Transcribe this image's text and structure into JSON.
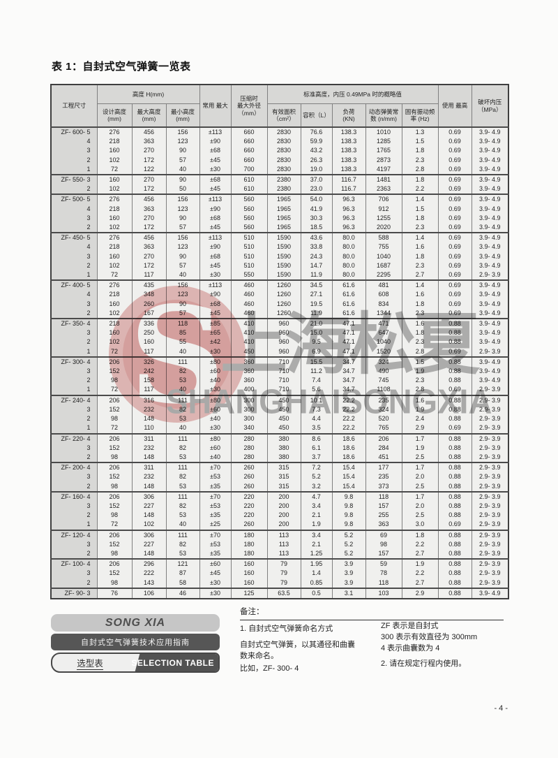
{
  "page": {
    "title": "表 1：自封式空气弹簧一览表",
    "page_number": "- 4 -"
  },
  "colors": {
    "table_header_bg": "#d8d8d6",
    "table_cell_bg": "#f0f0ee",
    "table_border_dark": "#4a4a4a",
    "brand_box_light": "#c6c6c6",
    "brand_box_dark": "#565656",
    "watermark_pink": "#eac0bf",
    "watermark_gray": "#b5b5b5"
  },
  "table": {
    "header": {
      "project": "工程尺寸",
      "height_group": "高度 H(mm)",
      "design_h": "设计高度\n(mm)",
      "max_h": "最大高度\n(mm)",
      "min_h": "最小高度\n(mm)",
      "stroke": "常用 最大",
      "od": "压缩时\n最大外径\n（mm）",
      "std_group": "标准高度，内压 0.49MPa 时的概略值",
      "area": "有效面积\n（cm²）",
      "volume": "容积（L）",
      "load": "负荷\n(KN)",
      "rate": "动态弹簧常\n数 (n/mm)",
      "freq": "固有振动频\n率 (Hz)",
      "max_use": "使用 最高",
      "burst": "破坏内压\n（MPa）"
    },
    "groups": [
      {
        "model": "ZF- 600- 5",
        "rows": [
          [
            "ZF- 600- 5",
            "276",
            "456",
            "156",
            "±113",
            "660",
            "2830",
            "76.6",
            "138.3",
            "1010",
            "1.3",
            "0.69",
            "3.9- 4.9"
          ],
          [
            "4",
            "218",
            "363",
            "123",
            "±90",
            "660",
            "2830",
            "59.9",
            "138.3",
            "1285",
            "1.5",
            "0.69",
            "3.9- 4.9"
          ],
          [
            "3",
            "160",
            "270",
            "90",
            "±68",
            "660",
            "2830",
            "43.2",
            "138.3",
            "1765",
            "1.8",
            "0.69",
            "3.9- 4.9"
          ],
          [
            "2",
            "102",
            "172",
            "57",
            "±45",
            "660",
            "2830",
            "26.3",
            "138.3",
            "2873",
            "2.3",
            "0.69",
            "3.9- 4.9"
          ],
          [
            "1",
            "72",
            "122",
            "40",
            "±30",
            "700",
            "2830",
            "19.0",
            "138.3",
            "4197",
            "2.8",
            "0.69",
            "3.9- 4.9"
          ]
        ]
      },
      {
        "model": "ZF- 550- 3",
        "rows": [
          [
            "ZF- 550- 3",
            "160",
            "270",
            "90",
            "±68",
            "610",
            "2380",
            "37.0",
            "116.7",
            "1481",
            "1.8",
            "0.69",
            "3.9- 4.9"
          ],
          [
            "2",
            "102",
            "172",
            "50",
            "±45",
            "610",
            "2380",
            "23.0",
            "116.7",
            "2363",
            "2.2",
            "0.69",
            "3.9- 4.9"
          ]
        ]
      },
      {
        "model": "ZF- 500- 5",
        "rows": [
          [
            "ZF- 500- 5",
            "276",
            "456",
            "156",
            "±113",
            "560",
            "1965",
            "54.0",
            "96.3",
            "706",
            "1.4",
            "0.69",
            "3.9- 4.9"
          ],
          [
            "4",
            "218",
            "363",
            "123",
            "±90",
            "560",
            "1965",
            "41.9",
            "96.3",
            "912",
            "1.5",
            "0.69",
            "3.9- 4.9"
          ],
          [
            "3",
            "160",
            "270",
            "90",
            "±68",
            "560",
            "1965",
            "30.3",
            "96.3",
            "1255",
            "1.8",
            "0.69",
            "3.9- 4.9"
          ],
          [
            "2",
            "102",
            "172",
            "57",
            "±45",
            "560",
            "1965",
            "18.5",
            "96.3",
            "2020",
            "2.3",
            "0.69",
            "3.9- 4.9"
          ]
        ]
      },
      {
        "model": "ZF- 450- 5",
        "rows": [
          [
            "ZF- 450- 5",
            "276",
            "456",
            "156",
            "±113",
            "510",
            "1590",
            "43.6",
            "80.0",
            "588",
            "1.4",
            "0.69",
            "3.9- 4.9"
          ],
          [
            "4",
            "218",
            "363",
            "123",
            "±90",
            "510",
            "1590",
            "33.8",
            "80.0",
            "755",
            "1.6",
            "0.69",
            "3.9- 4.9"
          ],
          [
            "3",
            "160",
            "270",
            "90",
            "±68",
            "510",
            "1590",
            "24.3",
            "80.0",
            "1040",
            "1.8",
            "0.69",
            "3.9- 4.9"
          ],
          [
            "2",
            "102",
            "172",
            "57",
            "±45",
            "510",
            "1590",
            "14.7",
            "80.0",
            "1687",
            "2.3",
            "0.69",
            "3.9- 4.9"
          ],
          [
            "1",
            "72",
            "117",
            "40",
            "±30",
            "550",
            "1590",
            "11.9",
            "80.0",
            "2295",
            "2.7",
            "0.69",
            "2.9- 3.9"
          ]
        ]
      },
      {
        "model": "ZF- 400- 5",
        "rows": [
          [
            "ZF- 400- 5",
            "276",
            "435",
            "156",
            "±113",
            "460",
            "1260",
            "34.5",
            "61.6",
            "481",
            "1.4",
            "0.69",
            "3.9- 4.9"
          ],
          [
            "4",
            "218",
            "348",
            "123",
            "±90",
            "460",
            "1260",
            "27.1",
            "61.6",
            "608",
            "1.6",
            "0.69",
            "3.9- 4.9"
          ],
          [
            "3",
            "160",
            "260",
            "90",
            "±68",
            "460",
            "1260",
            "19.5",
            "61.6",
            "834",
            "1.8",
            "0.69",
            "3.9- 4.9"
          ],
          [
            "2",
            "102",
            "167",
            "57",
            "±45",
            "460",
            "1260",
            "11.9",
            "61.6",
            "1344",
            "2.3",
            "0.69",
            "3.9- 4.9"
          ]
        ]
      },
      {
        "model": "ZF- 350- 4",
        "rows": [
          [
            "ZF- 350- 4",
            "218",
            "336",
            "118",
            "±85",
            "410",
            "960",
            "21.0",
            "47.1",
            "471",
            "1.6",
            "0.88",
            "3.9- 4.9"
          ],
          [
            "3",
            "160",
            "250",
            "85",
            "±65",
            "410",
            "960",
            "15.0",
            "47.1",
            "647",
            "1.8",
            "0.88",
            "3.9- 4.9"
          ],
          [
            "2",
            "102",
            "160",
            "55",
            "±42",
            "410",
            "960",
            "9.5",
            "47.1",
            "1040",
            "2.3",
            "0.88",
            "3.9- 4.9"
          ],
          [
            "1",
            "72",
            "117",
            "40",
            "±30",
            "450",
            "960",
            "6.9",
            "47.1",
            "1520",
            "2.8",
            "0.69",
            "2.9- 3.9"
          ]
        ]
      },
      {
        "model": "ZF- 300- 4",
        "rows": [
          [
            "ZF- 300- 4",
            "206",
            "326",
            "111",
            "±80",
            "360",
            "710",
            "15.5",
            "34.7",
            "324",
            "1.5",
            "0.88",
            "3.9- 4.9"
          ],
          [
            "3",
            "152",
            "242",
            "82",
            "±60",
            "360",
            "710",
            "11.2",
            "34.7",
            "490",
            "1.9",
            "0.88",
            "3.9- 4.9"
          ],
          [
            "2",
            "98",
            "158",
            "53",
            "±40",
            "360",
            "710",
            "7.4",
            "34.7",
            "745",
            "2.3",
            "0.88",
            "3.9- 4.9"
          ],
          [
            "1",
            "72",
            "117",
            "40",
            "±30",
            "400",
            "710",
            "5.6",
            "34.7",
            "1108",
            "2.8",
            "0.69",
            "2.9- 3.9"
          ]
        ]
      },
      {
        "model": "ZF- 240- 4",
        "rows": [
          [
            "ZF- 240- 4",
            "206",
            "316",
            "111",
            "±80",
            "300",
            "450",
            "10.1",
            "22.2",
            "235",
            "1.6",
            "0.88",
            "2.9- 3.9"
          ],
          [
            "3",
            "152",
            "232",
            "82",
            "±60",
            "300",
            "450",
            "7.3",
            "22.2",
            "324",
            "1.9",
            "0.88",
            "2.9- 3.9"
          ],
          [
            "2",
            "98",
            "148",
            "53",
            "±40",
            "300",
            "450",
            "4.4",
            "22.2",
            "520",
            "2.4",
            "0.88",
            "2.9- 3.9"
          ],
          [
            "1",
            "72",
            "110",
            "40",
            "±30",
            "340",
            "450",
            "3.5",
            "22.2",
            "765",
            "2.9",
            "0.69",
            "2.9- 3.9"
          ]
        ]
      },
      {
        "model": "ZF- 220- 4",
        "rows": [
          [
            "ZF- 220- 4",
            "206",
            "311",
            "111",
            "±80",
            "280",
            "380",
            "8.6",
            "18.6",
            "206",
            "1.7",
            "0.88",
            "2.9- 3.9"
          ],
          [
            "3",
            "152",
            "232",
            "82",
            "±60",
            "280",
            "380",
            "6.1",
            "18.6",
            "284",
            "1.9",
            "0.88",
            "2.9- 3.9"
          ],
          [
            "2",
            "98",
            "148",
            "53",
            "±40",
            "280",
            "380",
            "3.7",
            "18.6",
            "451",
            "2.5",
            "0.88",
            "2.9- 3.9"
          ]
        ]
      },
      {
        "model": "ZF- 200- 4",
        "rows": [
          [
            "ZF- 200- 4",
            "206",
            "311",
            "111",
            "±70",
            "260",
            "315",
            "7.2",
            "15.4",
            "177",
            "1.7",
            "0.88",
            "2.9- 3.9"
          ],
          [
            "3",
            "152",
            "232",
            "82",
            "±53",
            "260",
            "315",
            "5.2",
            "15.4",
            "235",
            "2.0",
            "0.88",
            "2.9- 3.9"
          ],
          [
            "2",
            "98",
            "148",
            "53",
            "±35",
            "260",
            "315",
            "3.2",
            "15.4",
            "373",
            "2.5",
            "0.88",
            "2.9- 3.9"
          ]
        ]
      },
      {
        "model": "ZF- 160- 4",
        "rows": [
          [
            "ZF- 160- 4",
            "206",
            "306",
            "111",
            "±70",
            "220",
            "200",
            "4.7",
            "9.8",
            "118",
            "1.7",
            "0.88",
            "2.9- 3.9"
          ],
          [
            "3",
            "152",
            "227",
            "82",
            "±53",
            "220",
            "200",
            "3.4",
            "9.8",
            "157",
            "2.0",
            "0.88",
            "2.9- 3.9"
          ],
          [
            "2",
            "98",
            "148",
            "53",
            "±35",
            "220",
            "200",
            "2.1",
            "9.8",
            "255",
            "2.5",
            "0.88",
            "2.9- 3.9"
          ],
          [
            "1",
            "72",
            "102",
            "40",
            "±25",
            "260",
            "200",
            "1.9",
            "9.8",
            "363",
            "3.0",
            "0.69",
            "2.9- 3.9"
          ]
        ]
      },
      {
        "model": "ZF- 120- 4",
        "rows": [
          [
            "ZF- 120- 4",
            "206",
            "306",
            "111",
            "±70",
            "180",
            "113",
            "3.4",
            "5.2",
            "69",
            "1.8",
            "0.88",
            "2.9- 3.9"
          ],
          [
            "3",
            "152",
            "227",
            "82",
            "±53",
            "180",
            "113",
            "2.1",
            "5.2",
            "98",
            "2.2",
            "0.88",
            "2.9- 3.9"
          ],
          [
            "2",
            "98",
            "148",
            "53",
            "±35",
            "180",
            "113",
            "1.25",
            "5.2",
            "157",
            "2.7",
            "0.88",
            "2.9- 3.9"
          ]
        ]
      },
      {
        "model": "ZF- 100- 4",
        "rows": [
          [
            "ZF- 100- 4",
            "206",
            "296",
            "121",
            "±60",
            "160",
            "79",
            "1.95",
            "3.9",
            "59",
            "1.9",
            "0.88",
            "2.9- 3.9"
          ],
          [
            "3",
            "152",
            "222",
            "87",
            "±45",
            "160",
            "79",
            "1.4",
            "3.9",
            "78",
            "2.2",
            "0.88",
            "2.9- 3.9"
          ],
          [
            "2",
            "98",
            "143",
            "58",
            "±30",
            "160",
            "79",
            "0.85",
            "3.9",
            "118",
            "2.7",
            "0.88",
            "2.9- 3.9"
          ]
        ]
      },
      {
        "model": "ZF- 90- 3",
        "rows": [
          [
            "ZF- 90- 3",
            "76",
            "106",
            "46",
            "±30",
            "125",
            "63.5",
            "0.5",
            "3.1",
            "103",
            "2.9",
            "0.88",
            "3.9- 4.9"
          ]
        ]
      }
    ]
  },
  "watermark": {
    "cn": "上海松夏",
    "en": "SHANGHAISONGXIA",
    "logo_letter": "S"
  },
  "branding": {
    "logo_text": "SONG XIA",
    "guide_text": "自封式空气弹簧技术应用指南",
    "tab_cn": "选型表",
    "tab_en": "SELECTION TABLE"
  },
  "notes": {
    "title": "备注：",
    "left": [
      "1. 自封式空气弹簧命名方式",
      "自封式空气弹簧，以其通径和曲囊\n数来命名。",
      "比如，ZF- 300- 4"
    ],
    "right": [
      "ZF 表示是自封式",
      "300 表示有效直径为 300mm",
      "4 表示曲囊数为 4",
      "2. 请在规定行程内使用。"
    ]
  }
}
